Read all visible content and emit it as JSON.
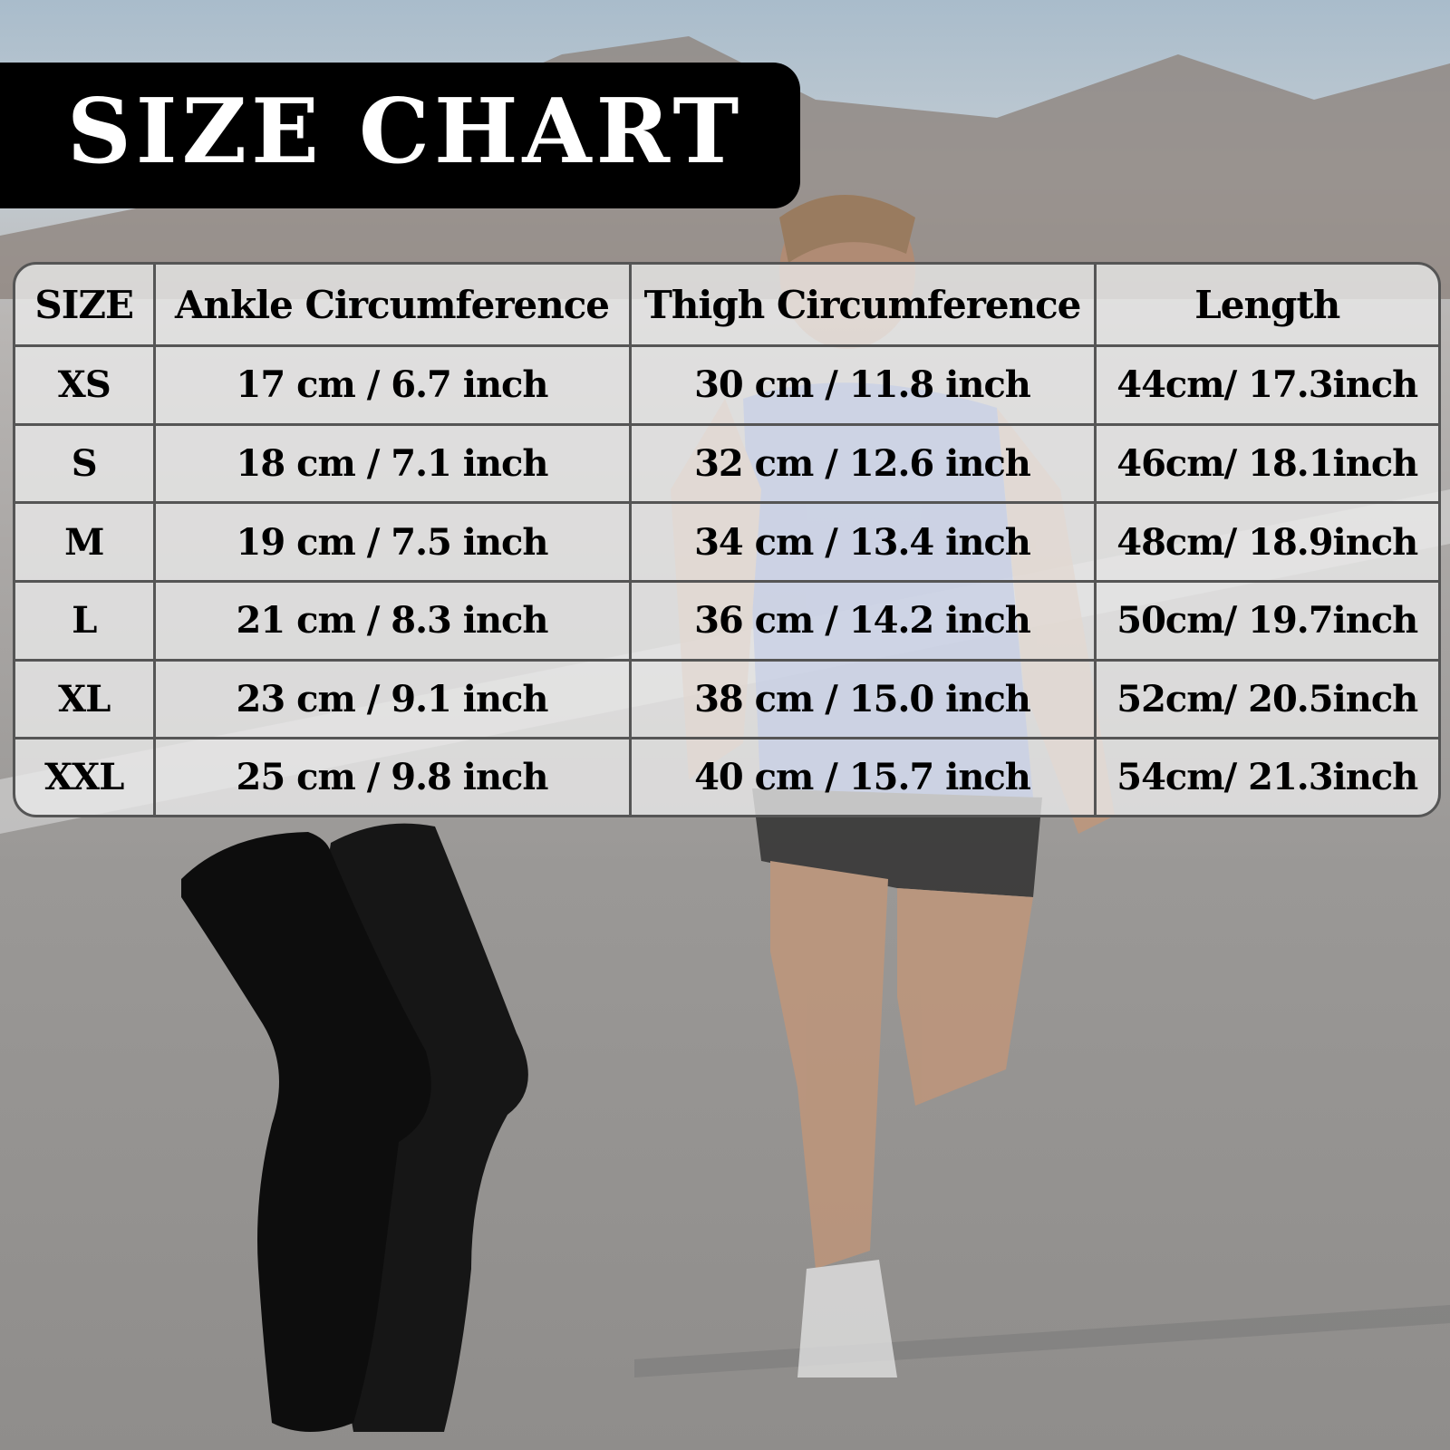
{
  "title": "SIZE CHART",
  "table": {
    "headers": [
      "SIZE",
      "Ankle Circumference",
      "Thigh Circumference",
      "Length"
    ],
    "rows": [
      [
        "XS",
        "17 cm / 6.7 inch",
        "30 cm / 11.8 inch",
        "44cm/ 17.3inch"
      ],
      [
        "S",
        "18 cm / 7.1 inch",
        "32 cm / 12.6 inch",
        "46cm/ 18.1inch"
      ],
      [
        "M",
        "19 cm / 7.5 inch",
        "34 cm / 13.4 inch",
        "48cm/ 18.9inch"
      ],
      [
        "L",
        "21 cm / 8.3 inch",
        "36 cm / 14.2 inch",
        "50cm/ 19.7inch"
      ],
      [
        "XL",
        "23 cm / 9.1 inch",
        "38 cm / 15.0 inch",
        "52cm/ 20.5inch"
      ],
      [
        "XXL",
        "25 cm / 9.8 inch",
        "40 cm / 15.7 inch",
        "54cm/ 21.3inch"
      ]
    ]
  },
  "colors": {
    "title_bg": "#000000",
    "title_text": "#ffffff",
    "sleeve": "#111111",
    "shirt": "#4a6fd8"
  },
  "images": {
    "background": "runner-on-road-photo",
    "product": "black-leg-sleeves-pair"
  }
}
